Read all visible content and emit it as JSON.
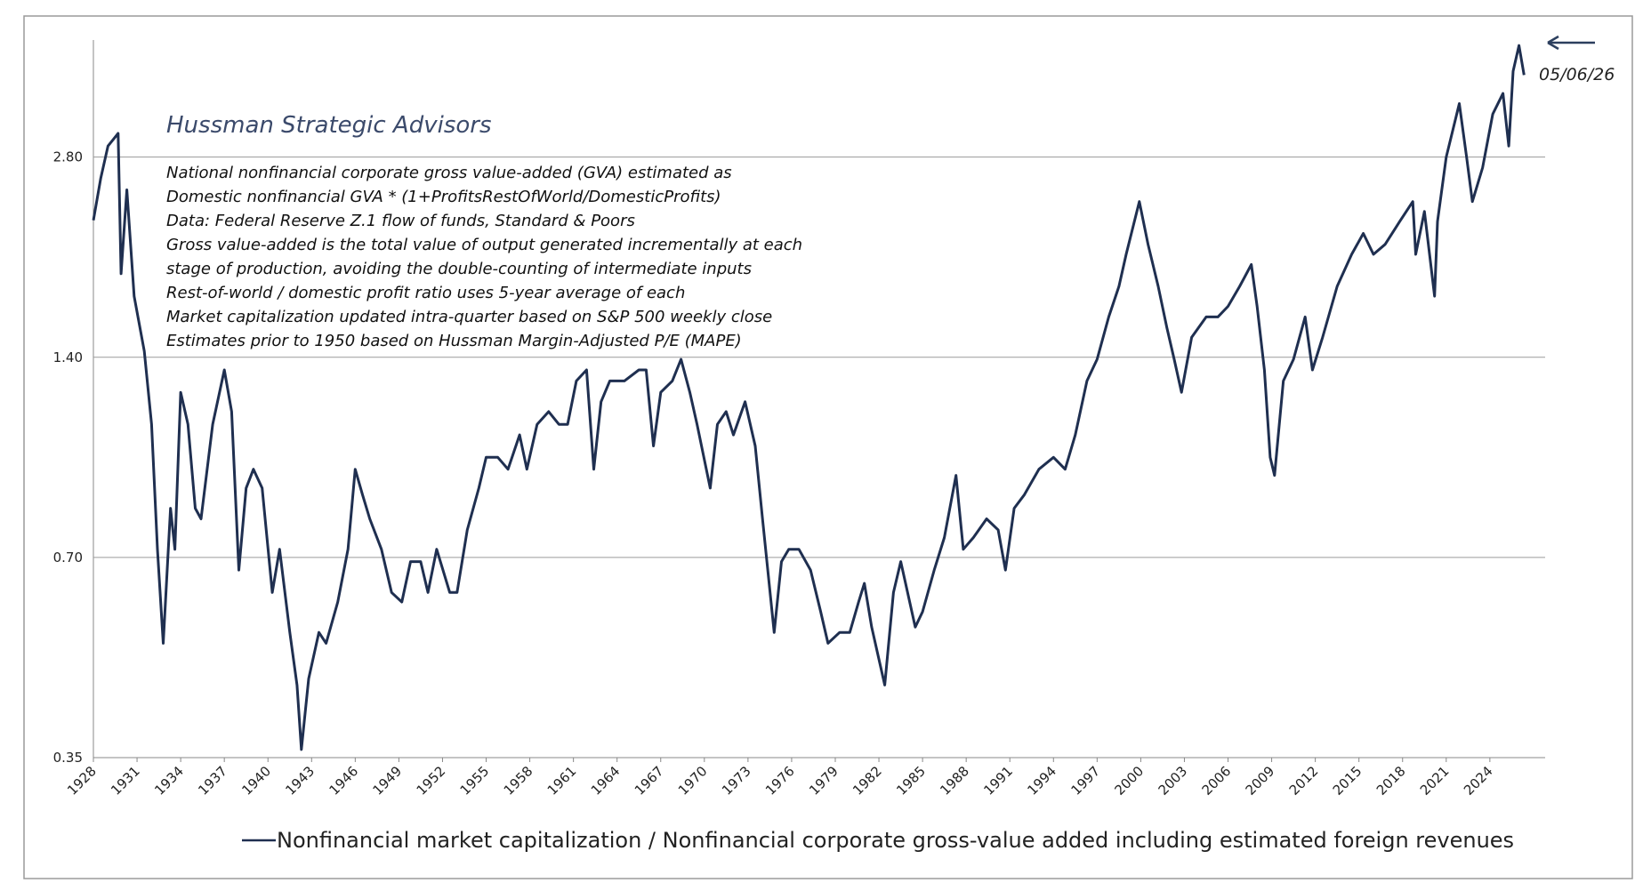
{
  "chart_data": {
    "type": "line",
    "title": "Hussman Strategic Advisors",
    "notes": [
      "National nonfinancial corporate gross value-added (GVA) estimated as",
      "Domestic nonfinancial GVA * (1+ProfitsRestOfWorld/DomesticProfits)",
      "Data: Federal Reserve Z.1 flow of funds, Standard & Poors",
      "Gross value-added is the total value of output generated incrementally at each",
      "stage of production, avoiding the double-counting of intermediate inputs",
      "Rest-of-world / domestic profit ratio uses 5-year average of each",
      "Market capitalization updated intra-quarter based on S&P 500 weekly close",
      "Estimates prior to 1950 based on Hussman Margin-Adjusted P/E (MAPE)"
    ],
    "annotation": "05/06/26",
    "log_y": true,
    "grid": true,
    "ylim": [
      0.35,
      4.2
    ],
    "yticks": [
      {
        "value": 0.35,
        "label": "0.35"
      },
      {
        "value": 0.7,
        "label": "0.70"
      },
      {
        "value": 1.4,
        "label": "1.40"
      },
      {
        "value": 2.8,
        "label": "2.80"
      }
    ],
    "xlim": [
      1928,
      2027.8
    ],
    "xticks": [
      1928,
      1931,
      1934,
      1937,
      1940,
      1943,
      1946,
      1949,
      1952,
      1955,
      1958,
      1961,
      1964,
      1967,
      1970,
      1973,
      1976,
      1979,
      1982,
      1985,
      1988,
      1991,
      1994,
      1997,
      2000,
      2003,
      2006,
      2009,
      2012,
      2015,
      2018,
      2021,
      2024
    ],
    "x": [
      1928.0,
      1928.5,
      1929.0,
      1929.7,
      1929.9,
      1930.3,
      1930.8,
      1931.5,
      1932.0,
      1932.4,
      1932.8,
      1933.3,
      1933.6,
      1934.0,
      1934.5,
      1935.0,
      1935.4,
      1936.2,
      1937.0,
      1937.5,
      1938.0,
      1938.5,
      1939.0,
      1939.6,
      1940.3,
      1940.8,
      1941.5,
      1942.0,
      1942.3,
      1942.8,
      1943.5,
      1944.0,
      1944.8,
      1945.5,
      1946.0,
      1946.5,
      1947.0,
      1947.8,
      1948.5,
      1949.2,
      1949.8,
      1950.5,
      1951.0,
      1951.6,
      1952.5,
      1953.0,
      1953.7,
      1954.5,
      1955.0,
      1955.8,
      1956.5,
      1957.3,
      1957.8,
      1958.5,
      1959.3,
      1960.0,
      1960.6,
      1961.2,
      1961.9,
      1962.4,
      1962.9,
      1963.5,
      1964.5,
      1965.5,
      1966.0,
      1966.5,
      1967.0,
      1967.8,
      1968.4,
      1969.0,
      1969.5,
      1970.4,
      1970.9,
      1971.5,
      1972.0,
      1972.8,
      1973.5,
      1974.0,
      1974.8,
      1975.3,
      1975.8,
      1976.5,
      1977.3,
      1978.0,
      1978.5,
      1979.3,
      1980.0,
      1980.6,
      1981.0,
      1981.5,
      1982.4,
      1983.0,
      1983.5,
      1984.5,
      1985.0,
      1985.8,
      1986.5,
      1987.3,
      1987.8,
      1988.5,
      1989.4,
      1990.2,
      1990.7,
      1991.3,
      1992.0,
      1993.0,
      1994.0,
      1994.8,
      1995.5,
      1996.3,
      1997.0,
      1997.8,
      1998.5,
      1999.0,
      1999.9,
      2000.5,
      2001.2,
      2001.8,
      2002.3,
      2002.8,
      2003.5,
      2004.5,
      2005.3,
      2006.0,
      2006.8,
      2007.6,
      2008.0,
      2008.5,
      2008.9,
      2009.2,
      2009.8,
      2010.5,
      2011.3,
      2011.8,
      2012.5,
      2013.5,
      2014.5,
      2015.3,
      2016.0,
      2016.8,
      2017.8,
      2018.7,
      2018.9,
      2019.5,
      2020.2,
      2020.4,
      2021.0,
      2021.9,
      2022.4,
      2022.8,
      2023.5,
      2024.2,
      2024.9,
      2025.3,
      2025.6,
      2026.0,
      2026.35
    ],
    "series": [
      {
        "name": "Nonfinancial market capitalization / Nonfinancial corporate gross-value added including estimated foreign revenues",
        "color": "#1f2f50",
        "values": [
          2.25,
          2.6,
          2.91,
          3.04,
          1.87,
          2.5,
          1.73,
          1.43,
          1.11,
          0.72,
          0.52,
          0.83,
          0.72,
          1.24,
          1.11,
          0.83,
          0.8,
          1.11,
          1.34,
          1.16,
          0.67,
          0.89,
          0.95,
          0.89,
          0.62,
          0.72,
          0.54,
          0.45,
          0.36,
          0.46,
          0.54,
          0.52,
          0.6,
          0.72,
          0.95,
          0.87,
          0.8,
          0.72,
          0.62,
          0.6,
          0.69,
          0.69,
          0.62,
          0.72,
          0.62,
          0.62,
          0.77,
          0.89,
          0.99,
          0.99,
          0.95,
          1.07,
          0.95,
          1.11,
          1.16,
          1.11,
          1.11,
          1.29,
          1.34,
          0.95,
          1.2,
          1.29,
          1.29,
          1.34,
          1.34,
          1.03,
          1.24,
          1.29,
          1.39,
          1.24,
          1.11,
          0.89,
          1.11,
          1.16,
          1.07,
          1.2,
          1.03,
          0.8,
          0.54,
          0.69,
          0.72,
          0.72,
          0.67,
          0.58,
          0.52,
          0.54,
          0.54,
          0.6,
          0.64,
          0.55,
          0.45,
          0.62,
          0.69,
          0.55,
          0.58,
          0.67,
          0.75,
          0.93,
          0.72,
          0.75,
          0.8,
          0.77,
          0.67,
          0.83,
          0.87,
          0.95,
          0.99,
          0.95,
          1.07,
          1.29,
          1.39,
          1.61,
          1.79,
          2.0,
          2.4,
          2.07,
          1.79,
          1.55,
          1.39,
          1.24,
          1.5,
          1.61,
          1.61,
          1.67,
          1.79,
          1.93,
          1.67,
          1.34,
          0.99,
          0.93,
          1.29,
          1.39,
          1.61,
          1.34,
          1.5,
          1.79,
          2.0,
          2.15,
          2.0,
          2.07,
          2.24,
          2.4,
          2.0,
          2.32,
          1.73,
          2.24,
          2.8,
          3.37,
          2.8,
          2.4,
          2.7,
          3.25,
          3.49,
          2.91,
          3.77,
          4.12,
          3.72
        ]
      }
    ]
  }
}
